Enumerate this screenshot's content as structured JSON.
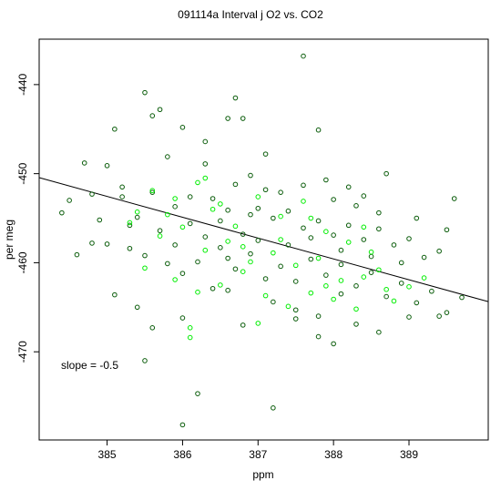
{
  "chart_data": {
    "type": "scatter",
    "title": "091114a   Interval j O2 vs. CO2",
    "xlabel": "ppm",
    "ylabel": "per meg",
    "xlim": [
      384.1,
      390.05
    ],
    "ylim": [
      -479.9,
      -434.9
    ],
    "xticks": [
      385,
      386,
      387,
      388,
      389
    ],
    "yticks": [
      -440,
      -450,
      -460,
      -470
    ],
    "grid": false,
    "legend": "none",
    "annotation": "slope =  -0.5",
    "fit_line": {
      "x": [
        384.1,
        390.05
      ],
      "y": [
        -450.45,
        -464.37
      ]
    },
    "colors": {
      "dark_points": "#0a5c0a",
      "bright_points": "#00ee00",
      "fit_line": "#000000",
      "axis": "#000000"
    },
    "series": [
      {
        "key": "dark",
        "points": [
          [
            385.1,
            -445.0
          ],
          [
            385.5,
            -440.9
          ],
          [
            385.6,
            -443.5
          ],
          [
            385.7,
            -442.8
          ],
          [
            386.0,
            -444.8
          ],
          [
            386.3,
            -446.4
          ],
          [
            386.6,
            -443.8
          ],
          [
            386.7,
            -441.5
          ],
          [
            386.8,
            -443.8
          ],
          [
            387.6,
            -436.8
          ],
          [
            387.8,
            -445.1
          ],
          [
            387.9,
            -450.7
          ],
          [
            385.8,
            -448.1
          ],
          [
            386.3,
            -448.9
          ],
          [
            385.0,
            -449.1
          ],
          [
            384.7,
            -448.8
          ],
          [
            388.7,
            -450.0
          ],
          [
            386.9,
            -450.2
          ],
          [
            387.1,
            -447.8
          ],
          [
            384.4,
            -454.4
          ],
          [
            384.6,
            -459.1
          ],
          [
            384.8,
            -457.8
          ],
          [
            384.5,
            -453.0
          ],
          [
            384.9,
            -455.2
          ],
          [
            385.2,
            -452.6
          ],
          [
            385.4,
            -454.9
          ],
          [
            385.6,
            -452.1
          ],
          [
            385.9,
            -453.7
          ],
          [
            386.1,
            -455.6
          ],
          [
            386.4,
            -452.8
          ],
          [
            386.6,
            -454.1
          ],
          [
            386.8,
            -456.8
          ],
          [
            387.0,
            -453.9
          ],
          [
            387.2,
            -455.0
          ],
          [
            387.4,
            -454.2
          ],
          [
            387.6,
            -456.1
          ],
          [
            387.8,
            -455.3
          ],
          [
            388.0,
            -456.9
          ],
          [
            388.2,
            -455.8
          ],
          [
            388.4,
            -457.4
          ],
          [
            388.6,
            -456.2
          ],
          [
            388.8,
            -458.0
          ],
          [
            389.0,
            -457.3
          ],
          [
            389.2,
            -459.4
          ],
          [
            389.4,
            -458.7
          ],
          [
            389.6,
            -452.8
          ],
          [
            385.0,
            -457.9
          ],
          [
            385.3,
            -458.4
          ],
          [
            385.5,
            -459.2
          ],
          [
            385.8,
            -460.1
          ],
          [
            386.0,
            -461.2
          ],
          [
            386.2,
            -459.9
          ],
          [
            386.5,
            -458.3
          ],
          [
            386.7,
            -460.7
          ],
          [
            386.9,
            -459.0
          ],
          [
            387.1,
            -461.8
          ],
          [
            387.3,
            -460.4
          ],
          [
            387.5,
            -462.1
          ],
          [
            387.7,
            -459.6
          ],
          [
            387.9,
            -461.4
          ],
          [
            388.1,
            -460.2
          ],
          [
            388.3,
            -462.6
          ],
          [
            388.5,
            -461.1
          ],
          [
            388.7,
            -463.8
          ],
          [
            388.9,
            -462.3
          ],
          [
            389.1,
            -464.5
          ],
          [
            389.3,
            -463.2
          ],
          [
            389.5,
            -465.6
          ],
          [
            389.7,
            -463.9
          ],
          [
            385.1,
            -463.6
          ],
          [
            385.6,
            -467.3
          ],
          [
            386.0,
            -466.2
          ],
          [
            386.4,
            -462.9
          ],
          [
            386.8,
            -467.0
          ],
          [
            387.2,
            -464.4
          ],
          [
            387.5,
            -466.3
          ],
          [
            387.8,
            -468.3
          ],
          [
            388.0,
            -469.1
          ],
          [
            388.3,
            -466.9
          ],
          [
            388.6,
            -467.8
          ],
          [
            389.0,
            -466.1
          ],
          [
            389.4,
            -466.0
          ],
          [
            387.8,
            -466.0
          ],
          [
            386.2,
            -474.7
          ],
          [
            386.0,
            -478.2
          ],
          [
            387.2,
            -476.3
          ],
          [
            385.5,
            -471.0
          ],
          [
            385.9,
            -458.0
          ],
          [
            386.3,
            -457.1
          ],
          [
            386.6,
            -459.5
          ],
          [
            387.0,
            -457.5
          ],
          [
            387.4,
            -458.0
          ],
          [
            387.7,
            -457.2
          ],
          [
            388.1,
            -458.6
          ],
          [
            388.5,
            -459.3
          ],
          [
            388.9,
            -460.0
          ],
          [
            385.3,
            -455.8
          ],
          [
            385.7,
            -456.4
          ],
          [
            386.1,
            -452.6
          ],
          [
            386.5,
            -455.3
          ],
          [
            386.9,
            -454.6
          ],
          [
            387.3,
            -452.1
          ],
          [
            387.6,
            -451.3
          ],
          [
            388.0,
            -452.9
          ],
          [
            388.3,
            -453.6
          ],
          [
            388.6,
            -454.4
          ],
          [
            389.1,
            -455.0
          ],
          [
            389.5,
            -456.3
          ],
          [
            384.8,
            -452.3
          ],
          [
            385.2,
            -451.5
          ],
          [
            386.7,
            -451.2
          ],
          [
            387.1,
            -451.8
          ],
          [
            388.2,
            -451.5
          ],
          [
            388.4,
            -452.5
          ],
          [
            387.5,
            -465.3
          ],
          [
            388.1,
            -463.5
          ],
          [
            386.6,
            -463.1
          ],
          [
            385.4,
            -465.0
          ]
        ]
      },
      {
        "key": "bright",
        "points": [
          [
            385.6,
            -451.9
          ],
          [
            385.9,
            -452.8
          ],
          [
            386.2,
            -451.0
          ],
          [
            386.5,
            -453.4
          ],
          [
            386.7,
            -455.9
          ],
          [
            387.0,
            -452.6
          ],
          [
            387.3,
            -454.8
          ],
          [
            387.6,
            -453.1
          ],
          [
            387.9,
            -456.5
          ],
          [
            388.2,
            -457.7
          ],
          [
            388.5,
            -458.8
          ],
          [
            385.3,
            -455.5
          ],
          [
            385.7,
            -457.0
          ],
          [
            386.0,
            -456.0
          ],
          [
            386.3,
            -458.6
          ],
          [
            386.6,
            -457.6
          ],
          [
            386.9,
            -459.9
          ],
          [
            387.2,
            -458.9
          ],
          [
            387.5,
            -460.3
          ],
          [
            387.8,
            -459.5
          ],
          [
            388.1,
            -462.0
          ],
          [
            388.4,
            -461.6
          ],
          [
            388.7,
            -463.0
          ],
          [
            389.0,
            -462.7
          ],
          [
            385.5,
            -460.6
          ],
          [
            385.9,
            -461.9
          ],
          [
            386.2,
            -463.3
          ],
          [
            386.5,
            -462.5
          ],
          [
            386.8,
            -461.0
          ],
          [
            387.1,
            -463.7
          ],
          [
            387.4,
            -464.9
          ],
          [
            387.7,
            -463.4
          ],
          [
            388.0,
            -464.1
          ],
          [
            388.3,
            -465.2
          ],
          [
            386.1,
            -467.3
          ],
          [
            386.1,
            -468.4
          ],
          [
            387.0,
            -466.8
          ],
          [
            388.4,
            -456.0
          ],
          [
            387.7,
            -455.0
          ],
          [
            386.4,
            -454.0
          ],
          [
            385.8,
            -454.6
          ],
          [
            386.8,
            -458.2
          ],
          [
            387.3,
            -457.4
          ],
          [
            388.6,
            -460.8
          ],
          [
            389.2,
            -461.7
          ],
          [
            386.3,
            -450.5
          ],
          [
            385.4,
            -454.3
          ],
          [
            387.9,
            -462.6
          ],
          [
            388.8,
            -464.3
          ]
        ]
      }
    ]
  }
}
